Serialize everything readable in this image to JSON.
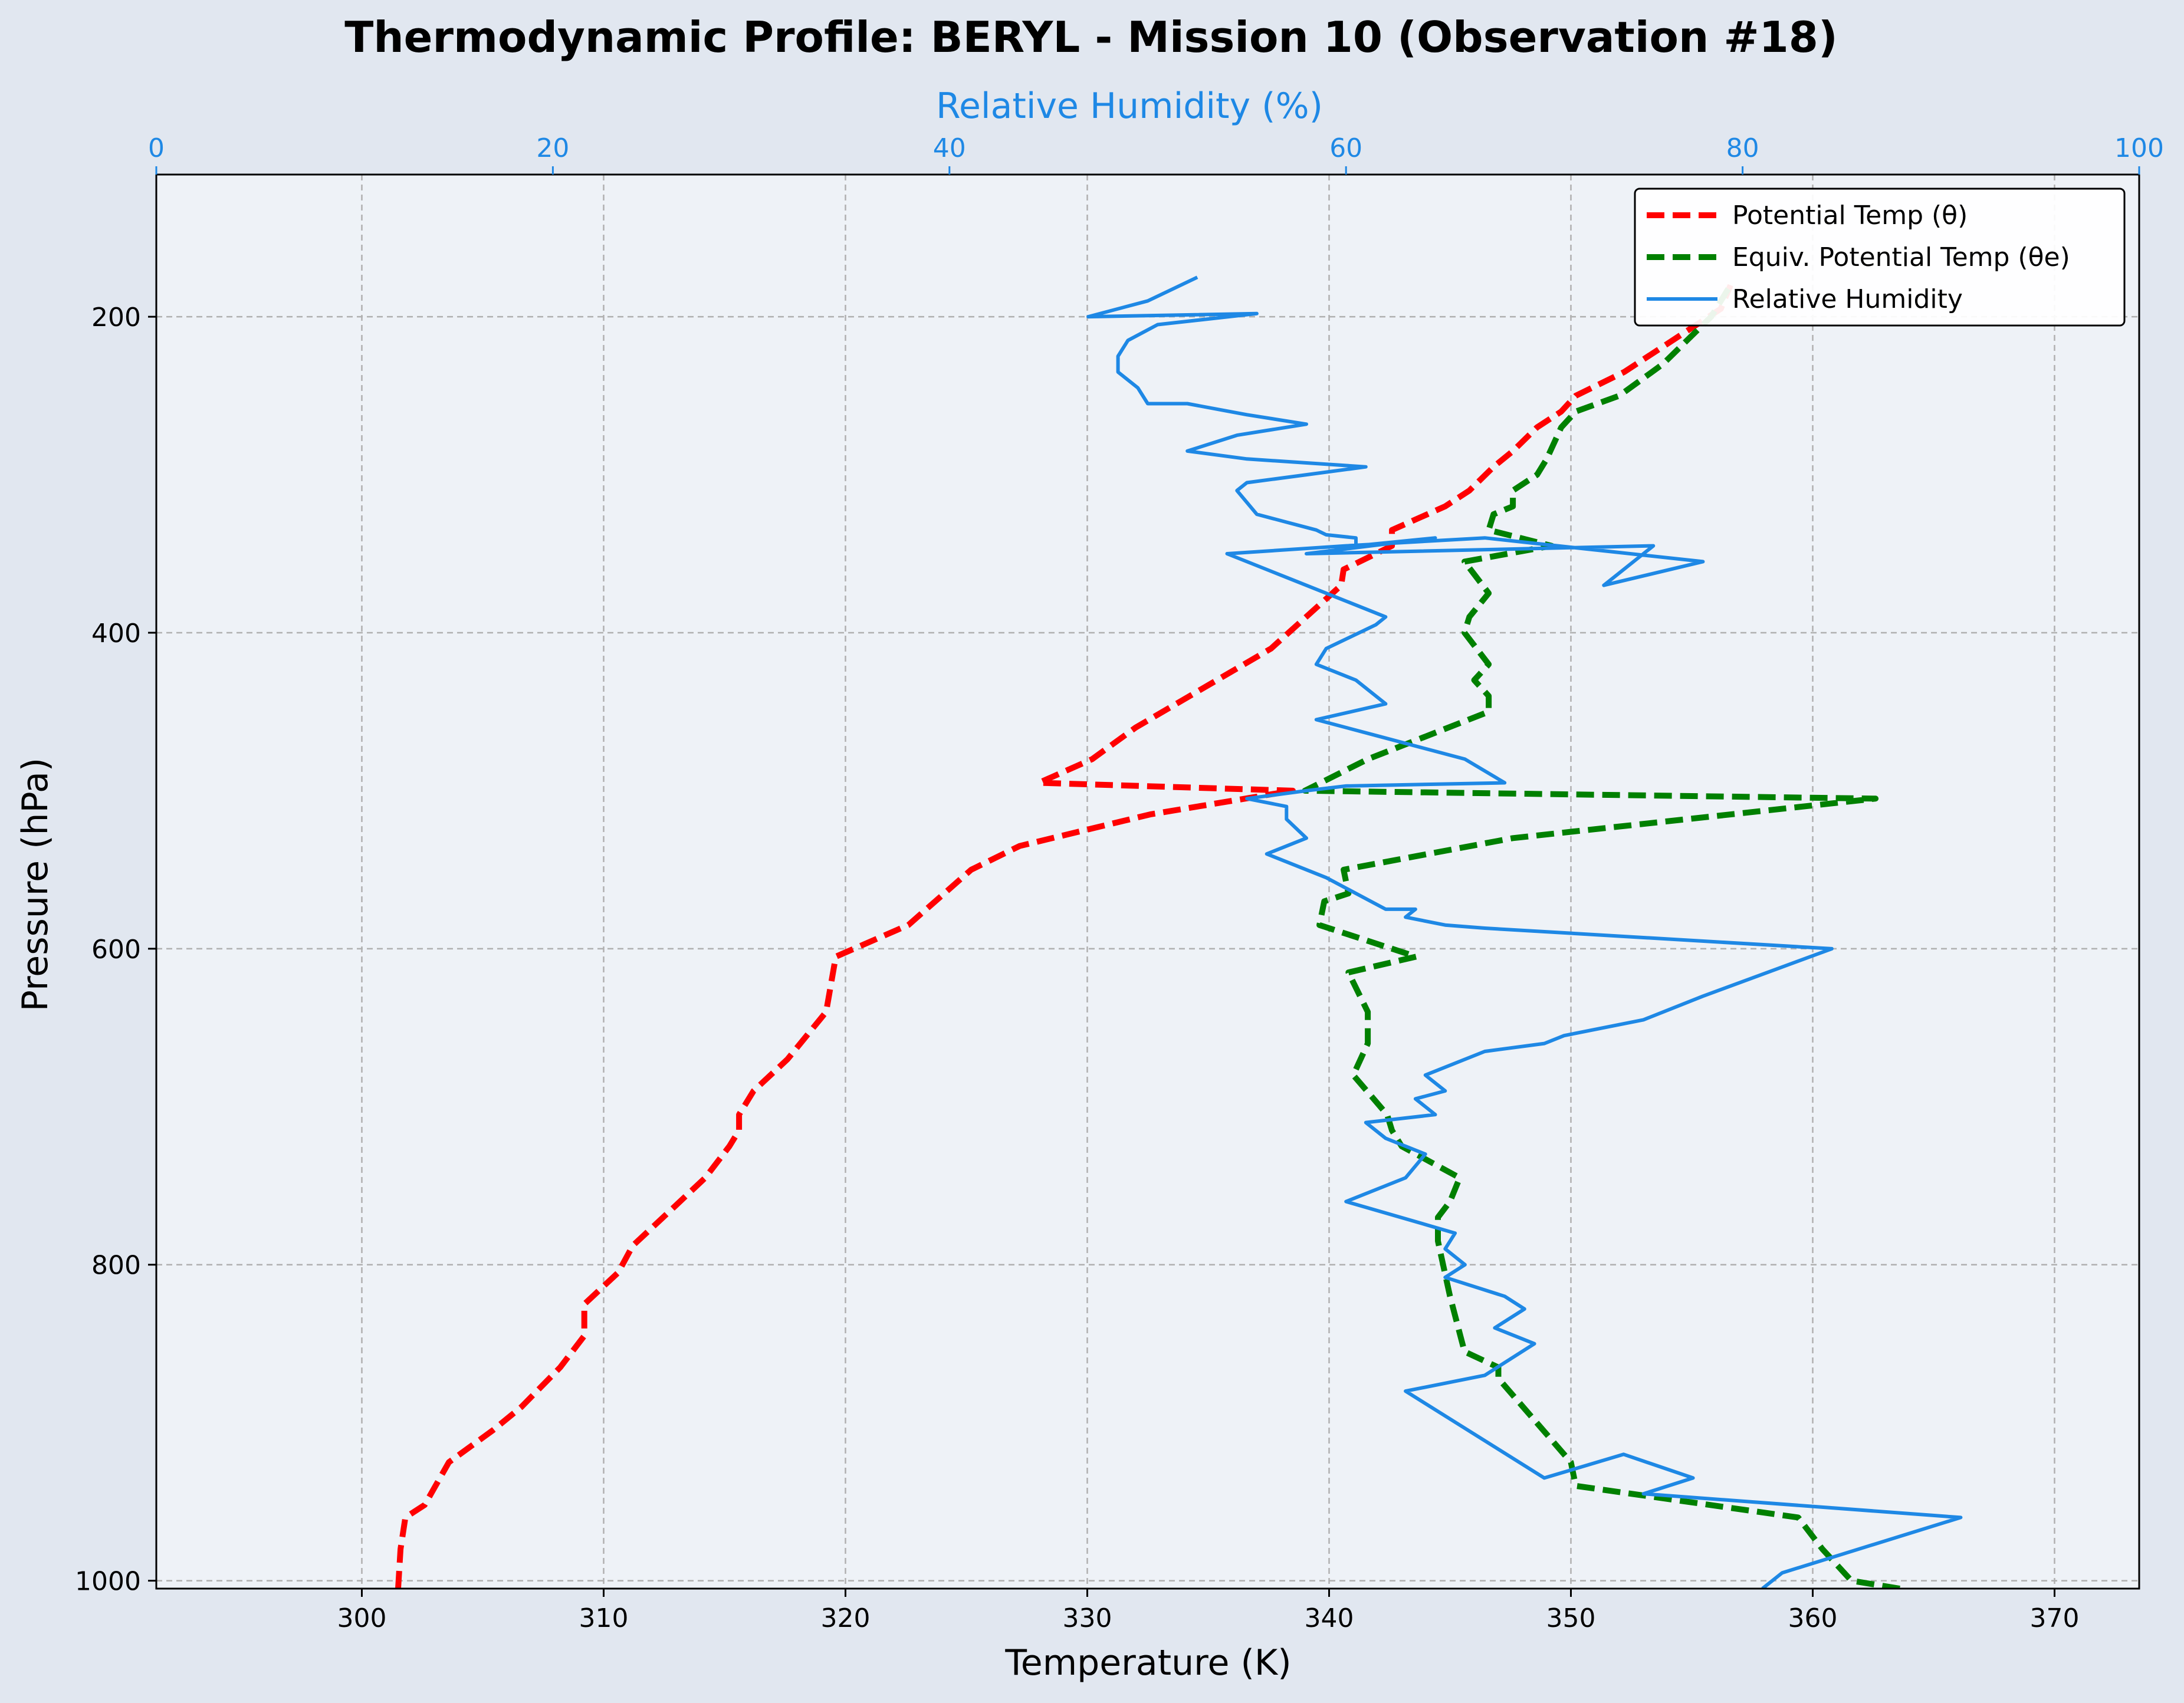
{
  "chart_data": {
    "type": "line",
    "title": "Thermodynamic Profile:  BERYL - Mission 10 (Observation #18)",
    "xlabel": "Temperature (K)",
    "ylabel": "Pressure (hPa)",
    "x2label": "Relative Humidity (%)",
    "xlim": [
      291.5,
      373.5
    ],
    "x2lim": [
      0,
      100
    ],
    "ylim": [
      1005,
      110
    ],
    "y_inverted": true,
    "xticks": [
      300,
      310,
      320,
      330,
      340,
      350,
      360,
      370
    ],
    "x2ticks": [
      0,
      20,
      40,
      60,
      80,
      100
    ],
    "yticks": [
      200,
      400,
      600,
      800,
      1000
    ],
    "grid": true,
    "legend_position": "top-right",
    "colors": {
      "background": "#e1e7f0",
      "plot_background": "#eef2f7",
      "theta": "#ff0000",
      "theta_e": "#008000",
      "rh": "#1e88e5",
      "rh_axis": "#1e88e5"
    },
    "series": [
      {
        "name": "Potential Temp (θ)",
        "axis": "temperature",
        "style": "dashed",
        "points": [
          [
            301.5,
            1005
          ],
          [
            301.6,
            980
          ],
          [
            301.8,
            960
          ],
          [
            302.6,
            952
          ],
          [
            303.6,
            925
          ],
          [
            305.4,
            905
          ],
          [
            306.6,
            890
          ],
          [
            308.2,
            865
          ],
          [
            309.2,
            845
          ],
          [
            309.2,
            825
          ],
          [
            310.6,
            805
          ],
          [
            311.2,
            788
          ],
          [
            312.6,
            768
          ],
          [
            314.2,
            745
          ],
          [
            315.2,
            725
          ],
          [
            315.6,
            715
          ],
          [
            315.6,
            705
          ],
          [
            316.2,
            690
          ],
          [
            317.6,
            670
          ],
          [
            319.2,
            640
          ],
          [
            319.6,
            605
          ],
          [
            322.6,
            585
          ],
          [
            325.2,
            550
          ],
          [
            327.2,
            535
          ],
          [
            332.6,
            515
          ],
          [
            338.5,
            500
          ],
          [
            328.0,
            495
          ],
          [
            330.2,
            480
          ],
          [
            332.0,
            460
          ],
          [
            337.6,
            410
          ],
          [
            340.5,
            370
          ],
          [
            340.6,
            360
          ],
          [
            342.6,
            345
          ],
          [
            342.6,
            335
          ],
          [
            344.8,
            320
          ],
          [
            345.8,
            310
          ],
          [
            346.8,
            295
          ],
          [
            347.6,
            285
          ],
          [
            348.6,
            270
          ],
          [
            349.6,
            260
          ],
          [
            350.2,
            250
          ],
          [
            352.2,
            235
          ],
          [
            354.2,
            215
          ],
          [
            356.2,
            195
          ],
          [
            356.6,
            180
          ]
        ]
      },
      {
        "name": "Equiv. Potential Temp (θe)",
        "axis": "temperature",
        "style": "dashed",
        "points": [
          [
            363.6,
            1005
          ],
          [
            361.6,
            1000
          ],
          [
            360.4,
            980
          ],
          [
            359.4,
            960
          ],
          [
            350.2,
            940
          ],
          [
            350.0,
            925
          ],
          [
            347.0,
            872
          ],
          [
            347.0,
            865
          ],
          [
            345.6,
            855
          ],
          [
            345.0,
            820
          ],
          [
            344.5,
            785
          ],
          [
            344.5,
            770
          ],
          [
            345.0,
            760
          ],
          [
            345.4,
            745
          ],
          [
            343.0,
            725
          ],
          [
            342.6,
            715
          ],
          [
            342.4,
            705
          ],
          [
            341.0,
            680
          ],
          [
            341.6,
            660
          ],
          [
            341.6,
            640
          ],
          [
            340.8,
            615
          ],
          [
            343.6,
            605
          ],
          [
            339.6,
            585
          ],
          [
            339.8,
            570
          ],
          [
            340.8,
            565
          ],
          [
            340.6,
            550
          ],
          [
            347.6,
            530
          ],
          [
            362.6,
            505
          ],
          [
            339.0,
            500
          ],
          [
            341.6,
            480
          ],
          [
            346.6,
            450
          ],
          [
            346.6,
            440
          ],
          [
            346.0,
            430
          ],
          [
            346.6,
            420
          ],
          [
            345.6,
            400
          ],
          [
            345.8,
            390
          ],
          [
            346.6,
            375
          ],
          [
            345.6,
            355
          ],
          [
            349.2,
            345
          ],
          [
            346.6,
            335
          ],
          [
            346.8,
            325
          ],
          [
            347.6,
            320
          ],
          [
            347.6,
            310
          ],
          [
            348.6,
            300
          ],
          [
            349.0,
            290
          ],
          [
            349.6,
            270
          ],
          [
            350.2,
            260
          ],
          [
            352.0,
            250
          ],
          [
            353.8,
            230
          ],
          [
            355.8,
            200
          ],
          [
            356.6,
            180
          ]
        ]
      },
      {
        "name": "Relative Humidity",
        "axis": "humidity",
        "style": "solid",
        "points": [
          [
            81.0,
            1005
          ],
          [
            82.0,
            995
          ],
          [
            91.0,
            960
          ],
          [
            75.0,
            945
          ],
          [
            77.5,
            935
          ],
          [
            74.0,
            920
          ],
          [
            70.0,
            935
          ],
          [
            63.0,
            880
          ],
          [
            67.0,
            870
          ],
          [
            69.5,
            850
          ],
          [
            67.5,
            840
          ],
          [
            69.0,
            828
          ],
          [
            68.0,
            820
          ],
          [
            65.0,
            808
          ],
          [
            66.0,
            800
          ],
          [
            65.0,
            790
          ],
          [
            65.5,
            780
          ],
          [
            60.0,
            760
          ],
          [
            63.0,
            745
          ],
          [
            64.0,
            730
          ],
          [
            62.0,
            720
          ],
          [
            61.0,
            710
          ],
          [
            64.5,
            705
          ],
          [
            63.5,
            695
          ],
          [
            65.0,
            690
          ],
          [
            64.0,
            680
          ],
          [
            67.0,
            665
          ],
          [
            70.0,
            660
          ],
          [
            71.0,
            655
          ],
          [
            75.0,
            645
          ],
          [
            78.0,
            630
          ],
          [
            84.5,
            600
          ],
          [
            67.0,
            587
          ],
          [
            65.0,
            585
          ],
          [
            63.0,
            580
          ],
          [
            63.5,
            575
          ],
          [
            62.0,
            575
          ],
          [
            59.0,
            555
          ],
          [
            56.0,
            540
          ],
          [
            58.0,
            530
          ],
          [
            57.0,
            518
          ],
          [
            57.0,
            510
          ],
          [
            55.0,
            505
          ],
          [
            58.0,
            500
          ],
          [
            60.0,
            497
          ],
          [
            68.0,
            495
          ],
          [
            66.0,
            480
          ],
          [
            61.5,
            465
          ],
          [
            58.5,
            455
          ],
          [
            62.0,
            445
          ],
          [
            61.5,
            440
          ],
          [
            60.5,
            430
          ],
          [
            58.5,
            420
          ],
          [
            59.0,
            410
          ],
          [
            61.5,
            395
          ],
          [
            62.0,
            390
          ],
          [
            60.0,
            380
          ],
          [
            57.0,
            365
          ],
          [
            55.0,
            355
          ],
          [
            54.0,
            350
          ],
          [
            60.0,
            345
          ],
          [
            67.0,
            340
          ],
          [
            78.0,
            355
          ],
          [
            73.0,
            370
          ],
          [
            75.5,
            345
          ],
          [
            58.0,
            350
          ],
          [
            64.5,
            340
          ],
          [
            60.5,
            345
          ],
          [
            60.5,
            340
          ],
          [
            59.0,
            338
          ],
          [
            58.5,
            335
          ],
          [
            57.0,
            330
          ],
          [
            55.5,
            325
          ],
          [
            54.5,
            310
          ],
          [
            55.0,
            305
          ],
          [
            58.0,
            300
          ],
          [
            61.0,
            295
          ],
          [
            55.0,
            290
          ],
          [
            52.0,
            285
          ],
          [
            54.5,
            275
          ],
          [
            58.0,
            268
          ],
          [
            55.0,
            262
          ],
          [
            52.0,
            255
          ],
          [
            50.0,
            255
          ],
          [
            49.5,
            245
          ],
          [
            48.5,
            235
          ],
          [
            48.5,
            225
          ],
          [
            49.0,
            215
          ],
          [
            50.5,
            205
          ],
          [
            55.5,
            198
          ],
          [
            47.0,
            200
          ],
          [
            50.0,
            190
          ],
          [
            52.5,
            175
          ]
        ]
      }
    ]
  }
}
